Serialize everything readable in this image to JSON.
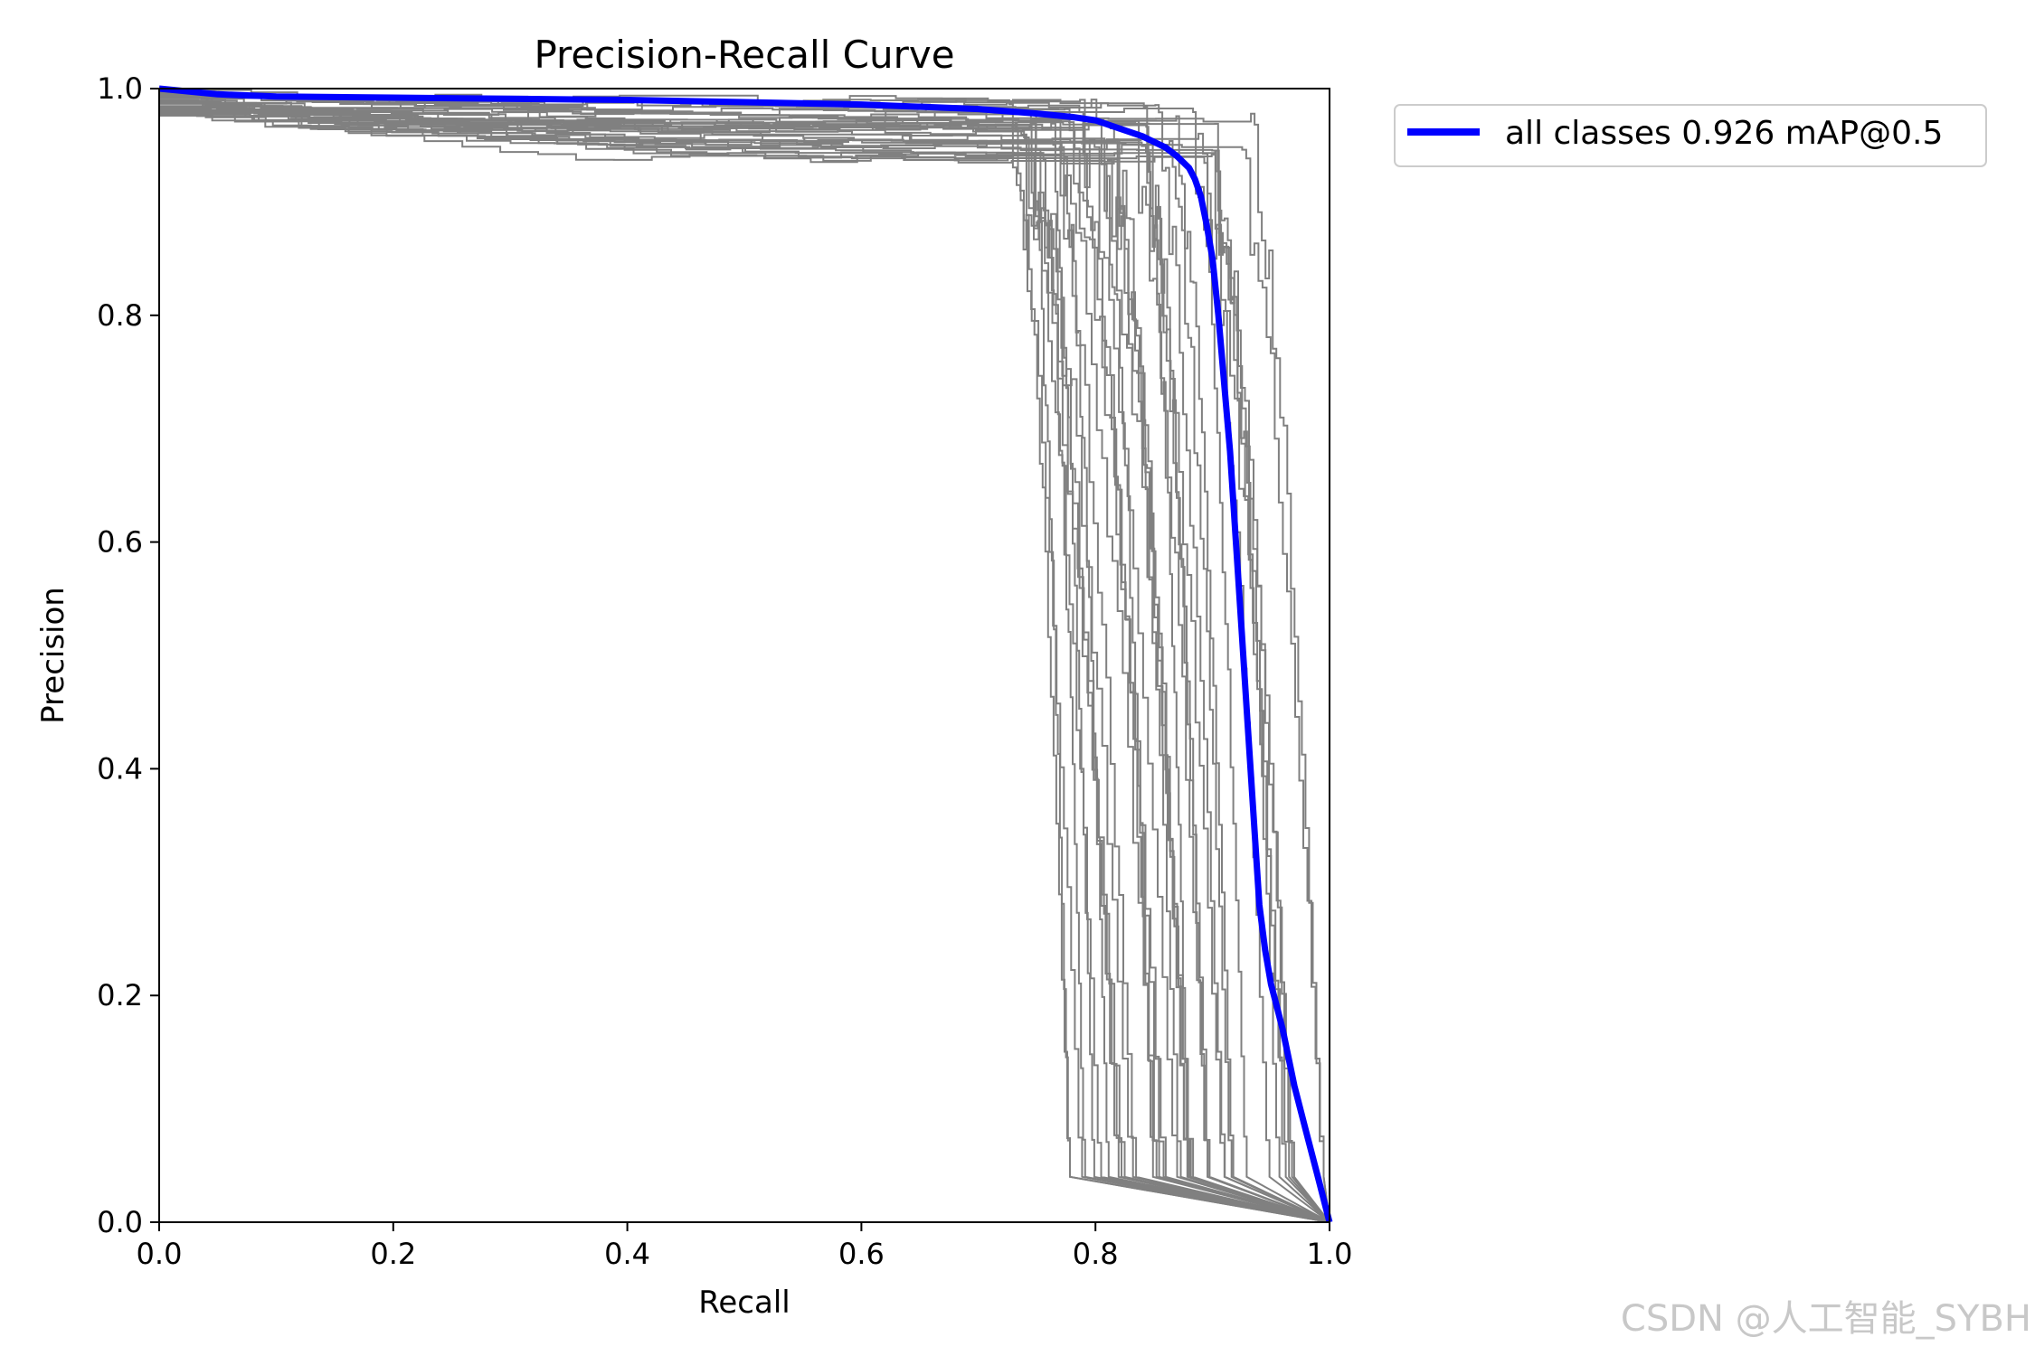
{
  "chart_data": {
    "type": "line",
    "title": "Precision-Recall Curve",
    "xlabel": "Recall",
    "ylabel": "Precision",
    "xlim": [
      0,
      1
    ],
    "ylim": [
      0,
      1
    ],
    "xticks": [
      "0.0",
      "0.2",
      "0.4",
      "0.6",
      "0.8",
      "1.0"
    ],
    "yticks": [
      "0.0",
      "0.2",
      "0.4",
      "0.6",
      "0.8",
      "1.0"
    ],
    "grid": false,
    "legend_position": "outside-top-right",
    "colors": {
      "per_class": "#808080",
      "all_classes": "#0000ff"
    },
    "per_class_curve_count": 40,
    "series": [
      {
        "name": "all classes 0.926 mAP@0.5",
        "color": "#0000ff",
        "x": [
          0.0,
          0.05,
          0.1,
          0.2,
          0.3,
          0.4,
          0.5,
          0.6,
          0.7,
          0.75,
          0.78,
          0.8,
          0.82,
          0.84,
          0.86,
          0.87,
          0.88,
          0.885,
          0.89,
          0.895,
          0.9,
          0.905,
          0.91,
          0.915,
          0.92,
          0.925,
          0.93,
          0.935,
          0.94,
          0.945,
          0.95,
          0.955,
          0.96,
          0.97,
          0.98,
          0.99,
          1.0
        ],
        "y": [
          1.0,
          0.995,
          0.993,
          0.992,
          0.991,
          0.99,
          0.988,
          0.986,
          0.982,
          0.978,
          0.975,
          0.972,
          0.965,
          0.958,
          0.948,
          0.94,
          0.93,
          0.92,
          0.905,
          0.88,
          0.85,
          0.8,
          0.74,
          0.68,
          0.6,
          0.52,
          0.44,
          0.36,
          0.28,
          0.24,
          0.21,
          0.19,
          0.17,
          0.12,
          0.08,
          0.04,
          0.0
        ]
      }
    ]
  },
  "watermark": "CSDN @人工智能_SYBH"
}
